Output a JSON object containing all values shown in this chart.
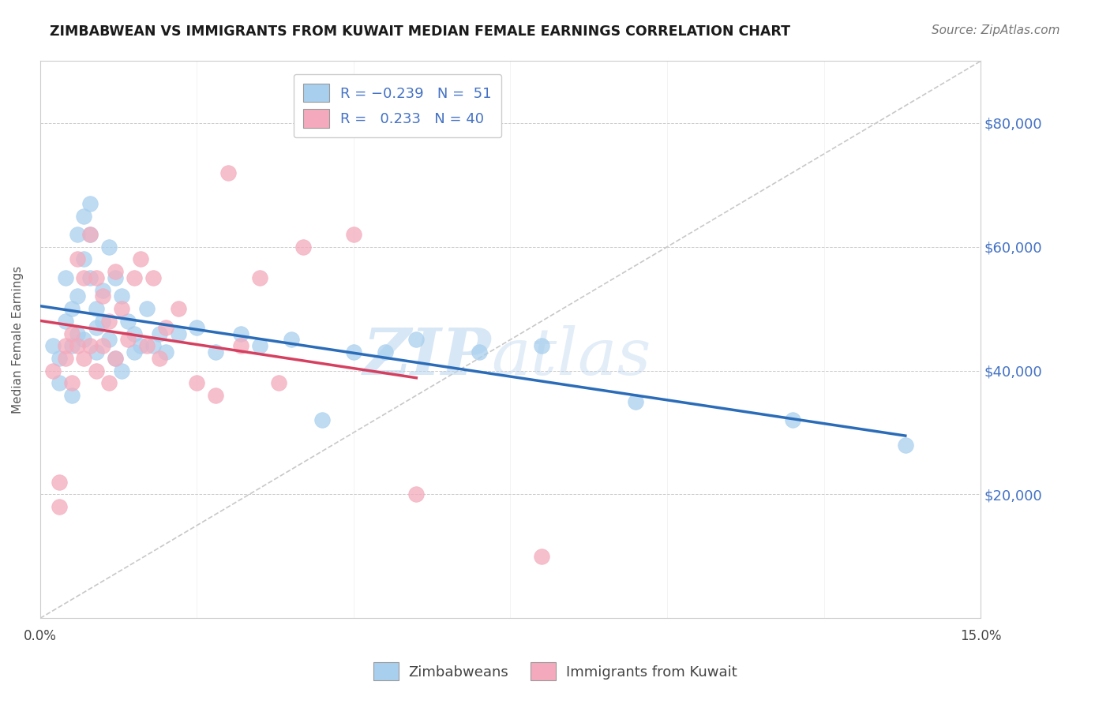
{
  "title": "ZIMBABWEAN VS IMMIGRANTS FROM KUWAIT MEDIAN FEMALE EARNINGS CORRELATION CHART",
  "source": "Source: ZipAtlas.com",
  "ylabel": "Median Female Earnings",
  "ytick_labels": [
    "$20,000",
    "$40,000",
    "$60,000",
    "$80,000"
  ],
  "ytick_values": [
    20000,
    40000,
    60000,
    80000
  ],
  "ylim": [
    0,
    90000
  ],
  "xlim": [
    0.0,
    0.15
  ],
  "color_blue": "#A8CFEE",
  "color_pink": "#F4AABC",
  "color_blue_line": "#2B6CB8",
  "color_pink_line": "#D64060",
  "color_diag": "#BBBBBB",
  "watermark_zip": "ZIP",
  "watermark_atlas": "atlas",
  "blue_x": [
    0.002,
    0.003,
    0.003,
    0.004,
    0.004,
    0.005,
    0.005,
    0.005,
    0.006,
    0.006,
    0.006,
    0.007,
    0.007,
    0.007,
    0.008,
    0.008,
    0.008,
    0.009,
    0.009,
    0.009,
    0.01,
    0.01,
    0.011,
    0.011,
    0.012,
    0.012,
    0.013,
    0.013,
    0.014,
    0.015,
    0.015,
    0.016,
    0.017,
    0.018,
    0.019,
    0.02,
    0.022,
    0.025,
    0.028,
    0.032,
    0.035,
    0.04,
    0.045,
    0.05,
    0.055,
    0.06,
    0.07,
    0.08,
    0.095,
    0.12,
    0.138
  ],
  "blue_y": [
    44000,
    42000,
    38000,
    55000,
    48000,
    36000,
    50000,
    44000,
    62000,
    52000,
    46000,
    65000,
    58000,
    45000,
    67000,
    62000,
    55000,
    50000,
    47000,
    43000,
    53000,
    48000,
    60000,
    45000,
    55000,
    42000,
    52000,
    40000,
    48000,
    46000,
    43000,
    44000,
    50000,
    44000,
    46000,
    43000,
    46000,
    47000,
    43000,
    46000,
    44000,
    45000,
    32000,
    43000,
    43000,
    45000,
    43000,
    44000,
    35000,
    32000,
    28000
  ],
  "pink_x": [
    0.002,
    0.003,
    0.003,
    0.004,
    0.004,
    0.005,
    0.005,
    0.006,
    0.006,
    0.007,
    0.007,
    0.008,
    0.008,
    0.009,
    0.009,
    0.01,
    0.01,
    0.011,
    0.011,
    0.012,
    0.012,
    0.013,
    0.014,
    0.015,
    0.016,
    0.017,
    0.018,
    0.019,
    0.02,
    0.022,
    0.025,
    0.028,
    0.03,
    0.032,
    0.035,
    0.038,
    0.042,
    0.05,
    0.06,
    0.08
  ],
  "pink_y": [
    40000,
    22000,
    18000,
    44000,
    42000,
    46000,
    38000,
    58000,
    44000,
    55000,
    42000,
    62000,
    44000,
    55000,
    40000,
    52000,
    44000,
    48000,
    38000,
    56000,
    42000,
    50000,
    45000,
    55000,
    58000,
    44000,
    55000,
    42000,
    47000,
    50000,
    38000,
    36000,
    72000,
    44000,
    55000,
    38000,
    60000,
    62000,
    20000,
    10000
  ]
}
